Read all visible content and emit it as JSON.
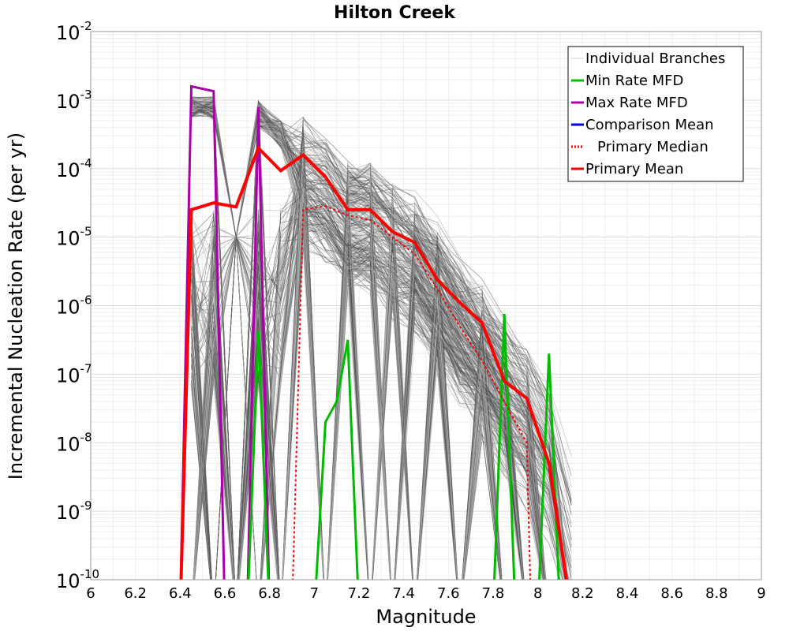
{
  "chart_data": {
    "type": "line",
    "title": "Hilton Creek",
    "xlabel": "Magnitude",
    "ylabel": "Incremental Nucleation Rate (per yr)",
    "xlim": [
      6,
      9
    ],
    "ylim_log10": [
      -10,
      -2
    ],
    "y_scale": "log",
    "grid": true,
    "x_ticks": [
      6,
      6.2,
      6.4,
      6.6,
      6.8,
      7,
      7.2,
      7.4,
      7.6,
      7.8,
      8,
      8.2,
      8.4,
      8.6,
      8.8,
      9
    ],
    "x_tick_labels": [
      "6",
      "6.2",
      "6.4",
      "6.6",
      "6.8",
      "7",
      "7.2",
      "7.4",
      "7.6",
      "7.8",
      "8",
      "8.2",
      "8.4",
      "8.6",
      "8.8",
      "9"
    ],
    "y_ticks": [
      {
        "base": "10",
        "exp": "-2"
      },
      {
        "base": "10",
        "exp": "-3"
      },
      {
        "base": "10",
        "exp": "-4"
      },
      {
        "base": "10",
        "exp": "-5"
      },
      {
        "base": "10",
        "exp": "-6"
      },
      {
        "base": "10",
        "exp": "-7"
      },
      {
        "base": "10",
        "exp": "-8"
      },
      {
        "base": "10",
        "exp": "-9"
      },
      {
        "base": "10",
        "exp": "-10"
      }
    ],
    "legend_position": "top-right",
    "legend": [
      {
        "label": "Individual Branches",
        "color": "#cccccc",
        "style": "solid"
      },
      {
        "label": "Min Rate MFD",
        "color": "#00bb00",
        "style": "solid"
      },
      {
        "label": "Max Rate MFD",
        "color": "#aa00aa",
        "style": "solid"
      },
      {
        "label": "Comparison Mean",
        "color": "#0000ee",
        "style": "solid"
      },
      {
        "label": "Primary Median",
        "color": "#ff0000",
        "style": "dotted"
      },
      {
        "label": "Primary Mean",
        "color": "#ff0000",
        "style": "solid"
      }
    ],
    "series": [
      {
        "name": "Max Rate MFD",
        "color": "#aa00aa",
        "width": 3,
        "dash": "",
        "x": [
          6.4,
          6.45,
          6.55,
          6.6,
          6.7,
          6.75,
          6.8
        ],
        "log10_y": [
          -10.5,
          -2.8,
          -2.87,
          -10.5,
          -10.5,
          -3.1,
          -10.5
        ]
      },
      {
        "name": "Min Rate MFD",
        "color": "#00bb00",
        "width": 3,
        "dash": "",
        "x": [
          6.7,
          6.75,
          6.8,
          7.0,
          7.05,
          7.1,
          7.15,
          7.2,
          7.8,
          7.85,
          7.9,
          8.0,
          8.05,
          8.1
        ],
        "log10_y": [
          -10.5,
          -6.37,
          -10.5,
          -10.5,
          -7.7,
          -7.4,
          -6.5,
          -10.5,
          -10.5,
          -6.12,
          -10.5,
          -10.5,
          -6.7,
          -10.5
        ]
      },
      {
        "name": "Primary Median",
        "color": "#ff0000",
        "width": 2,
        "dash": "3,3",
        "x": [
          6.9,
          6.95,
          7.05,
          7.15,
          7.25,
          7.35,
          7.45,
          7.55,
          7.65,
          7.75,
          7.85,
          7.95,
          7.97
        ],
        "log10_y": [
          -10.5,
          -4.6,
          -4.55,
          -4.68,
          -4.75,
          -5.0,
          -5.25,
          -5.75,
          -6.3,
          -6.8,
          -7.4,
          -8.0,
          -10.5
        ]
      },
      {
        "name": "Primary Mean",
        "color": "#ff0000",
        "width": 4,
        "dash": "",
        "x": [
          6.4,
          6.45,
          6.55,
          6.65,
          6.75,
          6.85,
          6.95,
          7.05,
          7.15,
          7.25,
          7.35,
          7.45,
          7.55,
          7.65,
          7.75,
          7.85,
          7.95,
          8.05,
          8.15
        ],
        "log10_y": [
          -10.5,
          -4.6,
          -4.5,
          -4.56,
          -3.7,
          -4.03,
          -3.8,
          -4.12,
          -4.6,
          -4.6,
          -4.92,
          -5.08,
          -5.62,
          -5.95,
          -6.25,
          -7.1,
          -7.35,
          -8.3,
          -10.5
        ]
      }
    ]
  }
}
